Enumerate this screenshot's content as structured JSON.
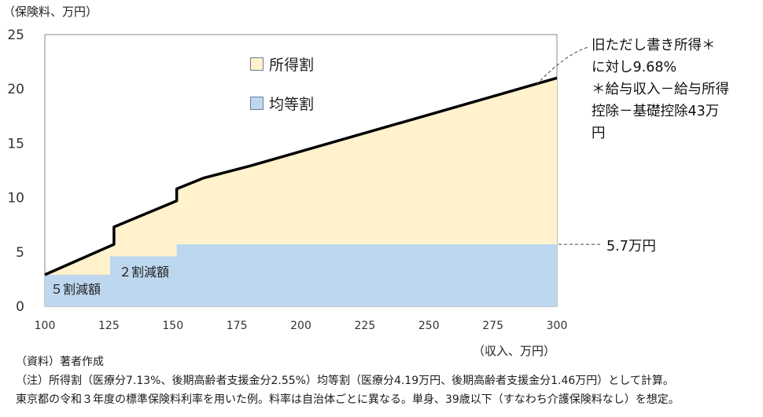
{
  "chart_data": {
    "type": "area",
    "ylabel": "（保険料、万円）",
    "xlabel": "（収入、万円）",
    "xlim": [
      100,
      300
    ],
    "ylim": [
      0,
      25
    ],
    "x_ticks": [
      100,
      125,
      150,
      175,
      200,
      225,
      250,
      275,
      300
    ],
    "y_ticks": [
      0,
      5,
      10,
      15,
      20,
      25
    ],
    "grid": false,
    "legend_position": "top-center",
    "series": [
      {
        "name": "均等割",
        "color": "#bdd7ee",
        "x": [
          100,
          125.5,
          125.5,
          151.5,
          151.5,
          300
        ],
        "y": [
          2.9,
          2.9,
          4.6,
          4.6,
          5.7,
          5.7
        ]
      },
      {
        "name": "所得割",
        "color": "#fff2cc",
        "x": [
          100,
          127,
          127,
          151.5,
          151.5,
          162,
          180,
          300
        ],
        "y": [
          2.9,
          5.7,
          7.3,
          9.7,
          10.8,
          11.8,
          12.9,
          21.0
        ]
      }
    ],
    "annotations": {
      "income_rate": [
        "旧ただし書き所得＊",
        "に対し9.68%",
        "＊給与収入－給与所得",
        "控除－基礎控除43万",
        "円"
      ],
      "flat_amount": "5.7万円",
      "reduction_50": "５割減額",
      "reduction_20": "２割減額"
    }
  },
  "notes": [
    "（資料）著者作成",
    "（注）所得割（医療分7.13%、後期高齢者支援金分2.55%）均等割（医療分4.19万円、後期高齢者支援金分1.46万円）として計算。",
    "東京都の令和３年度の標準保険料利率を用いた例。料率は自治体ごとに異なる。単身、39歳以下（すなわち介護保険料なし）を想定。"
  ],
  "colors": {
    "flat_fill": "#bdd7ee",
    "income_fill": "#fff2cc",
    "total_line": "#000000",
    "axis": "#888888"
  }
}
